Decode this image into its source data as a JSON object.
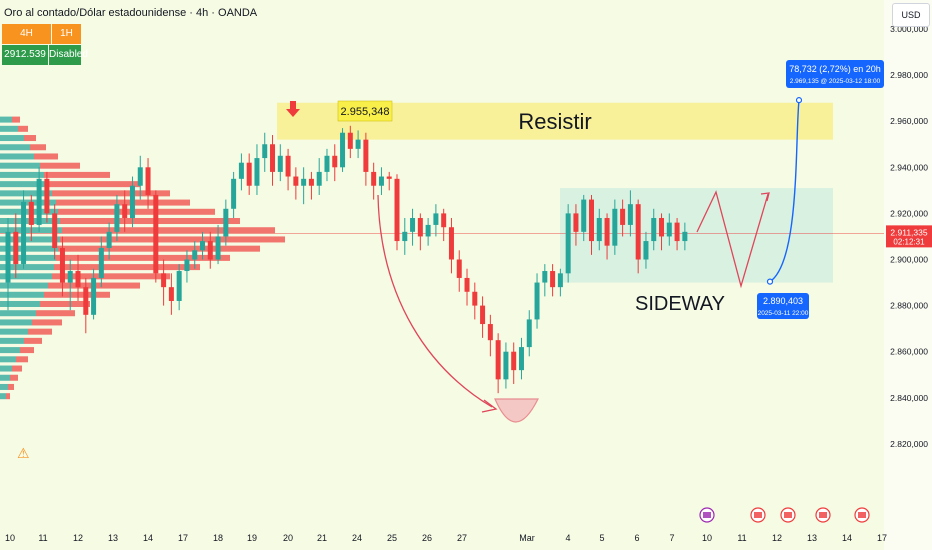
{
  "header": {
    "title": "Oro al contado/Dólar estadounidense · 4h · OANDA",
    "tf_button_1": "4H",
    "tf_button_2": "1H",
    "price_value": "2912.539",
    "status_label": "Disabled",
    "currency_label": "USD"
  },
  "colors": {
    "bull": "#26a69a",
    "bear": "#ef3b3b",
    "accent_orange": "#f7931e",
    "green_badge": "#2e9b4b",
    "resist_fill": "#f8ef8c",
    "sideway_fill": "#cdeee0",
    "projection_blue": "#1565ff",
    "curve_red": "#e0455a"
  },
  "icons": {
    "warning": "warning-icon",
    "arrow_down": "red-down-arrow-icon"
  },
  "chart_data": {
    "type": "candlestick",
    "ylim": [
      2800000,
      3000000
    ],
    "y_ticks": [
      {
        "value": 2820000,
        "label": "2.820,000"
      },
      {
        "value": 2840000,
        "label": "2.840,000"
      },
      {
        "value": 2860000,
        "label": "2.860,000"
      },
      {
        "value": 2880000,
        "label": "2.880,000"
      },
      {
        "value": 2900000,
        "label": "2.900,000"
      },
      {
        "value": 2920000,
        "label": "2.920,000"
      },
      {
        "value": 2940000,
        "label": "2.940,000"
      },
      {
        "value": 2960000,
        "label": "2.960,000"
      },
      {
        "value": 2980000,
        "label": "2.980,000"
      },
      {
        "value": 3000000,
        "label": "3.000,000"
      }
    ],
    "x_ticks": [
      "10",
      "11",
      "12",
      "13",
      "14",
      "17",
      "18",
      "19",
      "20",
      "21",
      "24",
      "25",
      "26",
      "27",
      "Mar",
      "4",
      "5",
      "6",
      "7",
      "10",
      "11",
      "12",
      "13",
      "14",
      "17"
    ],
    "current_price": {
      "label": "2.911,335",
      "countdown": "02:12:31",
      "value": 2911335
    },
    "annotations": {
      "resist_label": "Resistir",
      "resist_zone": [
        2952000,
        2968000
      ],
      "peak_label": "2.955,348",
      "peak_value": 2955348,
      "sideway_label": "SIDEWAY",
      "sideway_zone": [
        2890000,
        2931000
      ],
      "low_callout_price": "2.890,403",
      "low_callout_time": "2025-03-11 22:00",
      "low_value": 2890403,
      "target_callout_line1": "78,732 (2,72%) en 20h",
      "target_callout_line2": "2.969,135 @ 2025-03-12 18:00",
      "target_value": 2969135
    },
    "candles": [
      [
        2890,
        2912,
        2878,
        2918
      ],
      [
        2912,
        2898,
        2892,
        2920
      ],
      [
        2898,
        2925,
        2896,
        2930
      ],
      [
        2925,
        2915,
        2908,
        2928
      ],
      [
        2915,
        2935,
        2912,
        2940
      ],
      [
        2935,
        2920,
        2916,
        2938
      ],
      [
        2920,
        2905,
        2900,
        2924
      ],
      [
        2905,
        2890,
        2884,
        2910
      ],
      [
        2890,
        2895,
        2878,
        2900
      ],
      [
        2895,
        2888,
        2882,
        2902
      ],
      [
        2888,
        2876,
        2868,
        2892
      ],
      [
        2876,
        2892,
        2874,
        2896
      ],
      [
        2892,
        2905,
        2888,
        2910
      ],
      [
        2905,
        2912,
        2900,
        2916
      ],
      [
        2912,
        2924,
        2908,
        2928
      ],
      [
        2924,
        2918,
        2912,
        2930
      ],
      [
        2918,
        2932,
        2914,
        2936
      ],
      [
        2932,
        2940,
        2926,
        2945
      ],
      [
        2940,
        2928,
        2922,
        2944
      ],
      [
        2928,
        2894,
        2890,
        2930
      ],
      [
        2894,
        2888,
        2880,
        2900
      ],
      [
        2888,
        2882,
        2876,
        2894
      ],
      [
        2882,
        2895,
        2878,
        2898
      ],
      [
        2895,
        2900,
        2890,
        2904
      ],
      [
        2900,
        2904,
        2896,
        2908
      ],
      [
        2904,
        2908,
        2900,
        2912
      ],
      [
        2908,
        2900,
        2896,
        2912
      ],
      [
        2900,
        2910,
        2898,
        2915
      ],
      [
        2910,
        2922,
        2906,
        2926
      ],
      [
        2922,
        2935,
        2918,
        2938
      ],
      [
        2935,
        2942,
        2930,
        2946
      ],
      [
        2942,
        2932,
        2928,
        2946
      ],
      [
        2932,
        2944,
        2928,
        2950
      ],
      [
        2944,
        2950,
        2938,
        2955
      ],
      [
        2950,
        2938,
        2932,
        2954
      ],
      [
        2938,
        2945,
        2934,
        2950
      ],
      [
        2945,
        2936,
        2930,
        2948
      ],
      [
        2936,
        2932,
        2926,
        2940
      ],
      [
        2932,
        2935,
        2924,
        2940
      ],
      [
        2935,
        2932,
        2926,
        2938
      ],
      [
        2932,
        2938,
        2928,
        2944
      ],
      [
        2938,
        2945,
        2934,
        2948
      ],
      [
        2945,
        2940,
        2934,
        2950
      ],
      [
        2940,
        2955,
        2938,
        2957
      ],
      [
        2955,
        2948,
        2944,
        2958
      ],
      [
        2948,
        2952,
        2944,
        2956
      ],
      [
        2952,
        2938,
        2932,
        2955
      ],
      [
        2938,
        2932,
        2926,
        2942
      ],
      [
        2932,
        2936,
        2928,
        2940
      ],
      [
        2936,
        2935,
        2930,
        2938
      ],
      [
        2935,
        2908,
        2904,
        2937
      ],
      [
        2908,
        2912,
        2902,
        2918
      ],
      [
        2912,
        2918,
        2906,
        2922
      ],
      [
        2918,
        2910,
        2904,
        2920
      ],
      [
        2910,
        2915,
        2906,
        2918
      ],
      [
        2915,
        2920,
        2910,
        2924
      ],
      [
        2920,
        2914,
        2908,
        2922
      ],
      [
        2914,
        2900,
        2894,
        2918
      ],
      [
        2900,
        2892,
        2886,
        2904
      ],
      [
        2892,
        2886,
        2880,
        2896
      ],
      [
        2886,
        2880,
        2874,
        2890
      ],
      [
        2880,
        2872,
        2866,
        2884
      ],
      [
        2872,
        2865,
        2858,
        2876
      ],
      [
        2865,
        2848,
        2842,
        2868
      ],
      [
        2848,
        2860,
        2844,
        2864
      ],
      [
        2860,
        2852,
        2846,
        2864
      ],
      [
        2852,
        2862,
        2848,
        2866
      ],
      [
        2862,
        2874,
        2858,
        2878
      ],
      [
        2874,
        2890,
        2870,
        2894
      ],
      [
        2890,
        2895,
        2884,
        2898
      ],
      [
        2895,
        2888,
        2884,
        2898
      ],
      [
        2888,
        2894,
        2884,
        2896
      ],
      [
        2894,
        2920,
        2890,
        2924
      ],
      [
        2920,
        2912,
        2906,
        2924
      ],
      [
        2912,
        2926,
        2908,
        2928
      ],
      [
        2926,
        2908,
        2902,
        2928
      ],
      [
        2908,
        2918,
        2904,
        2922
      ],
      [
        2918,
        2906,
        2900,
        2920
      ],
      [
        2906,
        2922,
        2902,
        2926
      ],
      [
        2922,
        2915,
        2910,
        2926
      ],
      [
        2915,
        2924,
        2910,
        2930
      ],
      [
        2924,
        2900,
        2894,
        2926
      ],
      [
        2900,
        2908,
        2896,
        2912
      ],
      [
        2908,
        2918,
        2904,
        2922
      ],
      [
        2918,
        2910,
        2904,
        2920
      ],
      [
        2910,
        2916,
        2906,
        2920
      ],
      [
        2916,
        2908,
        2904,
        2918
      ],
      [
        2908,
        2912,
        2904,
        2916
      ]
    ]
  }
}
